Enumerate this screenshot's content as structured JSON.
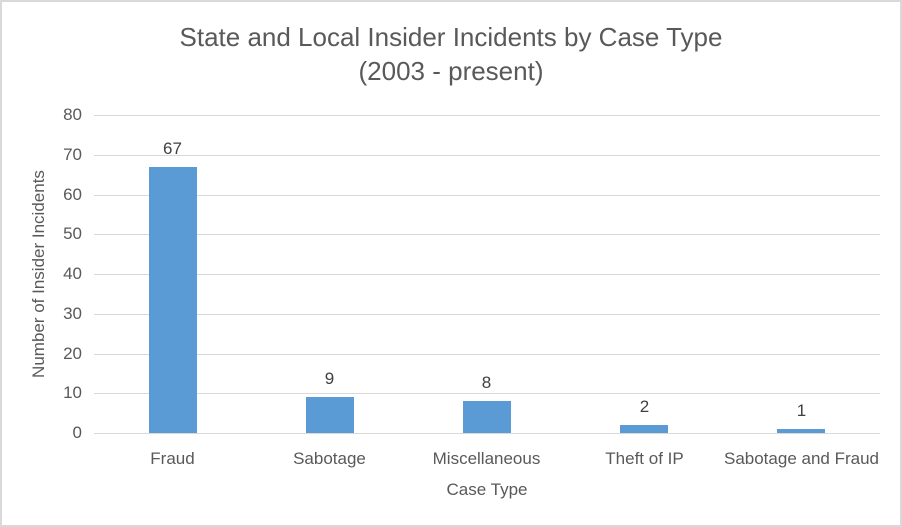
{
  "chart_data": {
    "type": "bar",
    "title": "State and Local Insider Incidents by Case Type",
    "subtitle": "(2003 - present)",
    "categories": [
      "Fraud",
      "Sabotage",
      "Miscellaneous",
      "Theft of IP",
      "Sabotage and Fraud"
    ],
    "values": [
      67,
      9,
      8,
      2,
      1
    ],
    "xlabel": "Case Type",
    "ylabel": "Number of Insider Incidents",
    "ylim": [
      0,
      80
    ],
    "yticks": [
      0,
      10,
      20,
      30,
      40,
      50,
      60,
      70,
      80
    ],
    "grid": true,
    "legend": "none",
    "colors": {
      "bar": "#5B9BD5",
      "gridline": "#D9D9D9",
      "axis_text": "#595959",
      "data_label": "#404040",
      "border": "#D9D9D9",
      "background": "#FFFFFF"
    }
  }
}
